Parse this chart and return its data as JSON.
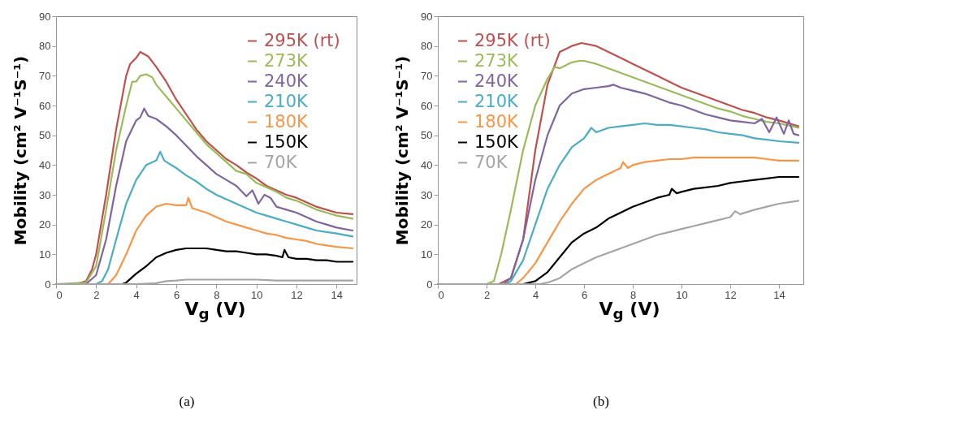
{
  "chart_data": [
    {
      "type": "line",
      "xlabel": "V$_{g}$ (V)",
      "ylabel": "Mobility (cm² V⁻¹S⁻¹)",
      "xlim": [
        0,
        15
      ],
      "xticks": [
        0,
        2,
        4,
        6,
        8,
        10,
        12,
        14
      ],
      "ylim": [
        0,
        90
      ],
      "yticks": [
        0,
        10,
        20,
        30,
        40,
        50,
        60,
        70,
        80,
        90
      ],
      "grid": false,
      "legend": "top right",
      "marker": "none",
      "line_style": "solid",
      "annotations": [
        "(a)"
      ],
      "series": [
        {
          "name": "295K (rt)",
          "color": "#c0504d",
          "x": [
            0,
            1,
            1.5,
            1.8,
            2,
            2.5,
            3,
            3.5,
            3.7,
            4,
            4.2,
            4.6,
            5,
            5.5,
            6,
            6.5,
            7,
            7.5,
            8,
            8.5,
            9,
            9.5,
            10,
            10.5,
            11,
            11.5,
            12,
            12.5,
            13,
            13.5,
            14,
            14.8
          ],
          "values": [
            0,
            0,
            1,
            5,
            10,
            30,
            52,
            70,
            74,
            76,
            78,
            76.5,
            73,
            68,
            62,
            57,
            52,
            48,
            45,
            42,
            40,
            37.5,
            35.5,
            33,
            31.5,
            30,
            29,
            27.5,
            26,
            25,
            24,
            23.5
          ]
        },
        {
          "name": "273K",
          "color": "#9bbb59",
          "x": [
            0,
            1.5,
            2,
            2.5,
            3,
            3.5,
            3.8,
            4,
            4.2,
            4.5,
            4.8,
            5,
            5.5,
            6,
            6.5,
            7,
            7.5,
            8,
            8.5,
            9,
            9.5,
            10,
            10.5,
            11,
            11.5,
            12,
            12.5,
            13,
            13.5,
            14,
            14.8
          ],
          "values": [
            0,
            0.5,
            6,
            25,
            45,
            60,
            68,
            68,
            70,
            70.5,
            69.5,
            67,
            63,
            59,
            55,
            51,
            47,
            44,
            41,
            38,
            37,
            34,
            32.5,
            31,
            29,
            28,
            26.5,
            25,
            24,
            23,
            22
          ]
        },
        {
          "name": "240K",
          "color": "#8064a2",
          "x": [
            0,
            1.5,
            2,
            2.5,
            3,
            3.5,
            4,
            4.2,
            4.4,
            4.6,
            5,
            5.5,
            6,
            6.5,
            7,
            7.5,
            8,
            8.5,
            9,
            9.5,
            9.8,
            10.1,
            10.4,
            10.7,
            11,
            11.5,
            12,
            12.5,
            13,
            13.5,
            14,
            14.8
          ],
          "values": [
            0,
            0,
            3,
            15,
            33,
            48,
            55,
            56,
            59,
            56.5,
            55.5,
            53,
            50,
            46.5,
            43,
            40,
            37,
            35,
            33,
            29.5,
            31.5,
            27,
            30,
            29,
            26,
            25,
            24,
            22.5,
            21,
            20,
            19,
            18
          ]
        },
        {
          "name": "210K",
          "color": "#4bacc6",
          "x": [
            0,
            2,
            2.3,
            2.6,
            3,
            3.5,
            4,
            4.5,
            5,
            5.2,
            5.4,
            6,
            6.5,
            7,
            7.5,
            8,
            8.5,
            9,
            9.5,
            10,
            10.5,
            11,
            11.5,
            12,
            12.5,
            13,
            13.5,
            14,
            14.8
          ],
          "values": [
            0,
            0,
            1,
            5,
            15,
            27,
            35,
            40,
            41.5,
            44.5,
            41.5,
            39,
            36.5,
            34.5,
            32,
            30,
            28.5,
            27,
            25.5,
            24,
            23,
            22,
            21,
            20,
            19,
            18,
            17.5,
            17,
            16
          ]
        },
        {
          "name": "180K",
          "color": "#f79646",
          "x": [
            0,
            2.6,
            3,
            3.5,
            4,
            4.5,
            5,
            5.5,
            6,
            6.5,
            6.6,
            6.8,
            7.5,
            8,
            8.5,
            9,
            9.5,
            10,
            10.5,
            11,
            11.5,
            12,
            12.5,
            13,
            13.5,
            14,
            14.8
          ],
          "values": [
            0,
            0,
            3,
            10,
            18,
            23,
            26,
            27,
            26.5,
            26.5,
            29,
            25.5,
            24,
            22.5,
            21,
            20,
            19,
            18,
            17,
            16.5,
            15.5,
            15,
            14.5,
            13.5,
            13,
            12.5,
            12
          ]
        },
        {
          "name": "150K",
          "color": "#000000",
          "x": [
            0,
            3.3,
            3.5,
            4,
            4.5,
            5,
            5.5,
            6,
            6.5,
            7,
            7.5,
            8,
            8.5,
            9,
            9.5,
            10,
            10.5,
            11,
            11.3,
            11.4,
            11.6,
            12,
            12.5,
            13,
            13.5,
            14,
            14.8
          ],
          "values": [
            0,
            0,
            0.5,
            3.5,
            6,
            9,
            10.5,
            11.5,
            12,
            12,
            12,
            11.5,
            11,
            11,
            10.5,
            10,
            10,
            9.5,
            9,
            11.5,
            9,
            8.5,
            8.5,
            8,
            8,
            7.5,
            7.5
          ]
        },
        {
          "name": "70K",
          "color": "#a5a5a5",
          "x": [
            0,
            4,
            5,
            5.5,
            6,
            6.5,
            8,
            10,
            11,
            14.8
          ],
          "values": [
            0,
            0,
            0.3,
            1,
            1.2,
            1.5,
            1.5,
            1.5,
            1.2,
            1.2
          ]
        }
      ]
    },
    {
      "type": "line",
      "xlabel": "V$_{g}$ (V)",
      "ylabel": "Mobility (cm² V⁻¹S⁻¹)",
      "xlim": [
        0,
        15
      ],
      "xticks": [
        0,
        2,
        4,
        6,
        8,
        10,
        12,
        14
      ],
      "ylim": [
        0,
        90
      ],
      "yticks": [
        0,
        10,
        20,
        30,
        40,
        50,
        60,
        70,
        80,
        90
      ],
      "grid": false,
      "legend": "top left",
      "marker": "none",
      "line_style": "solid",
      "annotations": [
        "(b)"
      ],
      "series": [
        {
          "name": "295K (rt)",
          "color": "#c0504d",
          "x": [
            0,
            2.5,
            3,
            3.5,
            4,
            4.5,
            5,
            5.5,
            5.9,
            6.5,
            7,
            7.5,
            8,
            8.5,
            9,
            9.5,
            10,
            10.5,
            11,
            11.5,
            12,
            12.5,
            13,
            13.5,
            14,
            14.8
          ],
          "values": [
            0,
            0,
            2,
            15,
            45,
            67,
            78,
            80,
            81,
            80,
            78,
            76,
            74,
            72,
            70,
            68,
            66,
            64.5,
            63,
            61.5,
            60,
            58.5,
            57.5,
            56,
            55,
            53
          ]
        },
        {
          "name": "273K",
          "color": "#9bbb59",
          "x": [
            0,
            2,
            2.3,
            2.6,
            3,
            3.5,
            4,
            4.5,
            4.8,
            5,
            5.5,
            5.8,
            6,
            6.5,
            7,
            7.5,
            8,
            8.5,
            9,
            9.5,
            10,
            10.5,
            11,
            11.5,
            12,
            12.5,
            13,
            13.5,
            14,
            14.8
          ],
          "values": [
            0,
            0,
            1,
            10,
            25,
            45,
            60,
            69,
            73,
            72.5,
            74.5,
            75,
            75,
            74,
            72.5,
            71,
            69.5,
            68,
            66.5,
            65,
            63.5,
            62,
            60.5,
            59,
            58,
            56.5,
            55.5,
            54.5,
            54,
            52.5
          ]
        },
        {
          "name": "240K",
          "color": "#8064a2",
          "x": [
            0,
            2.7,
            3,
            3.5,
            4,
            4.5,
            5,
            5.5,
            6,
            6.5,
            7,
            7.2,
            7.5,
            8,
            8.5,
            9,
            9.5,
            10,
            10.5,
            11,
            11.5,
            12,
            12.5,
            13,
            13.3,
            13.6,
            13.9,
            14.2,
            14.4,
            14.6,
            14.8
          ],
          "values": [
            0,
            0,
            2,
            15,
            35,
            50,
            60,
            64,
            65.5,
            66,
            66.5,
            67,
            66,
            65,
            64,
            62.5,
            61,
            60,
            58.5,
            57,
            56,
            55,
            54.5,
            54,
            55.5,
            51,
            56,
            50.5,
            55,
            50.5,
            50
          ]
        },
        {
          "name": "210K",
          "color": "#4bacc6",
          "x": [
            0,
            2.8,
            3,
            3.5,
            4,
            4.5,
            5,
            5.5,
            6,
            6.3,
            6.5,
            7,
            7.5,
            8,
            8.5,
            9,
            9.5,
            10,
            10.5,
            11,
            11.5,
            12,
            12.5,
            13,
            13.5,
            14,
            14.8
          ],
          "values": [
            0,
            0,
            1,
            8,
            20,
            32,
            40,
            46,
            49,
            52.5,
            51,
            52.5,
            53,
            53.5,
            54,
            53.5,
            53.5,
            53,
            52.5,
            52,
            51,
            50.5,
            50,
            49,
            48.5,
            48,
            47.5
          ]
        },
        {
          "name": "180K",
          "color": "#f79646",
          "x": [
            0,
            3.2,
            3.5,
            4,
            4.5,
            5,
            5.5,
            6,
            6.5,
            7,
            7.5,
            7.6,
            7.8,
            8,
            8.5,
            9,
            9.5,
            10,
            10.5,
            11,
            11.5,
            12,
            12.5,
            13,
            13.5,
            14,
            14.8
          ],
          "values": [
            0,
            0,
            2,
            7,
            14,
            21,
            27,
            32,
            35,
            37,
            39,
            41,
            39,
            40,
            41,
            41.5,
            42,
            42,
            42.5,
            42.5,
            42.5,
            42.5,
            42.5,
            42.5,
            42,
            41.5,
            41.5
          ]
        },
        {
          "name": "150K",
          "color": "#000000",
          "x": [
            0,
            3.5,
            4,
            4.5,
            5,
            5.5,
            6,
            6.5,
            7,
            7.5,
            8,
            8.5,
            9,
            9.5,
            9.6,
            9.8,
            10,
            10.5,
            11,
            11.5,
            12,
            12.5,
            13,
            13.5,
            14,
            14.8
          ],
          "values": [
            0,
            0,
            1,
            4,
            9,
            14,
            17,
            19,
            22,
            24,
            26,
            27.5,
            29,
            30,
            32,
            30.5,
            31,
            32,
            32.5,
            33,
            34,
            34.5,
            35,
            35.5,
            36,
            36
          ]
        },
        {
          "name": "70K",
          "color": "#a5a5a5",
          "x": [
            0,
            4.2,
            4.5,
            5,
            5.5,
            6,
            6.5,
            7,
            7.5,
            8,
            8.5,
            9,
            9.5,
            10,
            10.5,
            11,
            11.5,
            12,
            12.2,
            12.4,
            13,
            13.5,
            14,
            14.8
          ],
          "values": [
            0,
            0,
            0.5,
            2,
            5,
            7,
            9,
            10.5,
            12,
            13.5,
            15,
            16.5,
            17.5,
            18.5,
            19.5,
            20.5,
            21.5,
            22.5,
            24.5,
            23.5,
            25,
            26,
            27,
            28
          ]
        }
      ]
    }
  ]
}
